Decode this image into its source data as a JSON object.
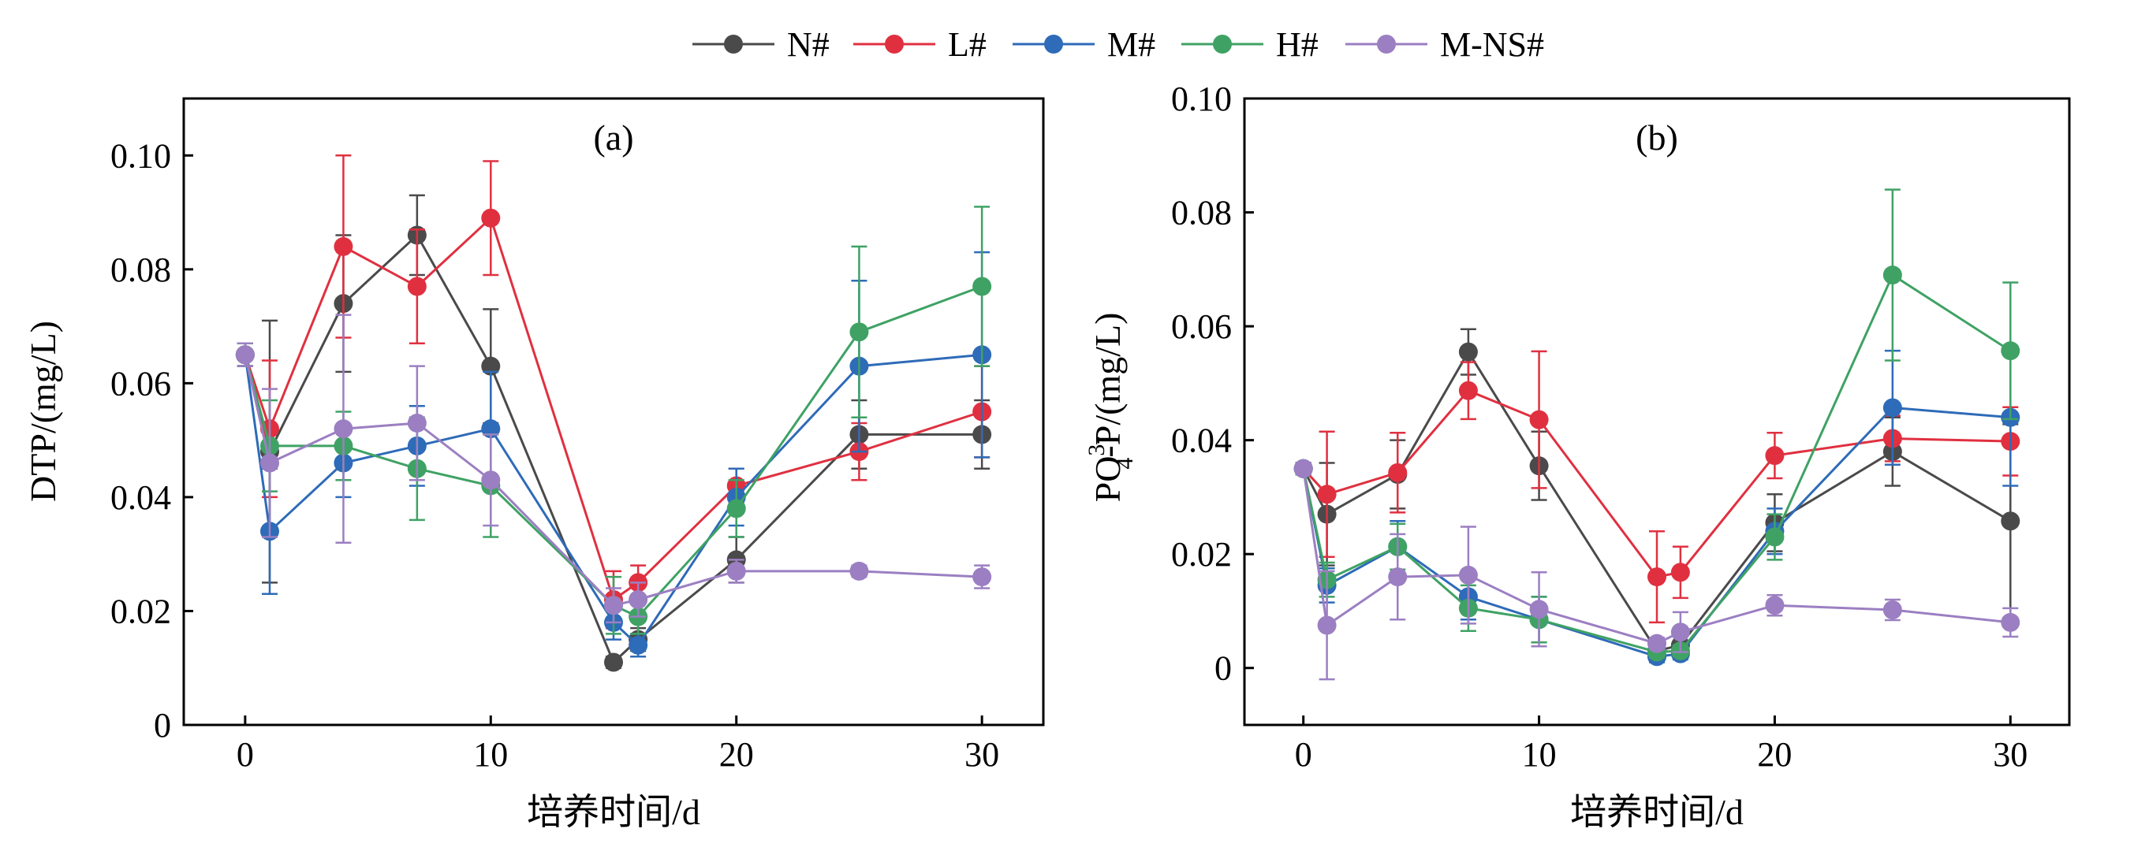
{
  "legend": {
    "placement": "top-center",
    "entries": [
      {
        "name": "N#",
        "color": "#4a4a4a"
      },
      {
        "name": "L#",
        "color": "#e03040"
      },
      {
        "name": "M#",
        "color": "#2e6bb8"
      },
      {
        "name": "H#",
        "color": "#3fa264"
      },
      {
        "name": "M-NS#",
        "color": "#9b7fc2"
      }
    ]
  },
  "chart_data": [
    {
      "type": "line",
      "panel_label": "(a)",
      "xlabel": "培养时间/d",
      "ylabel": "DTP/(mg/L)",
      "xlim": [
        -2.5,
        32.5
      ],
      "ylim": [
        0,
        0.11
      ],
      "xticks": [
        0,
        10,
        20,
        30
      ],
      "xtick_labels": [
        "0",
        "10",
        "20",
        "30"
      ],
      "yticks": [
        0,
        0.02,
        0.04,
        0.06,
        0.08,
        0.1
      ],
      "ytick_labels": [
        "0",
        "0.02",
        "0.04",
        "0.06",
        "0.08",
        "0.10"
      ],
      "x": [
        0,
        1,
        4,
        7,
        10,
        15,
        16,
        20,
        25,
        30
      ],
      "series": [
        {
          "name": "N#",
          "color": "#4a4a4a",
          "values": [
            0.065,
            0.048,
            0.074,
            0.086,
            0.063,
            0.011,
            0.015,
            0.029,
            0.051,
            0.051
          ],
          "errors": [
            0.002,
            0.023,
            0.012,
            0.007,
            0.01,
            0.001,
            0.002,
            0.004,
            0.006,
            0.006
          ]
        },
        {
          "name": "L#",
          "color": "#e03040",
          "values": [
            0.065,
            0.052,
            0.084,
            0.077,
            0.089,
            0.022,
            0.025,
            0.042,
            0.048,
            0.055
          ],
          "errors": [
            0.002,
            0.012,
            0.016,
            0.01,
            0.01,
            0.005,
            0.003,
            0.003,
            0.005,
            0.008
          ]
        },
        {
          "name": "M#",
          "color": "#2e6bb8",
          "values": [
            0.065,
            0.034,
            0.046,
            0.049,
            0.052,
            0.018,
            0.014,
            0.04,
            0.063,
            0.065
          ],
          "errors": [
            0.002,
            0.011,
            0.006,
            0.007,
            0.01,
            0.003,
            0.002,
            0.005,
            0.015,
            0.018
          ]
        },
        {
          "name": "H#",
          "color": "#3fa264",
          "values": [
            0.065,
            0.049,
            0.049,
            0.045,
            0.042,
            0.021,
            0.019,
            0.038,
            0.069,
            0.077
          ],
          "errors": [
            0.002,
            0.008,
            0.006,
            0.009,
            0.009,
            0.005,
            0.003,
            0.005,
            0.015,
            0.014
          ]
        },
        {
          "name": "M-NS#",
          "color": "#9b7fc2",
          "values": [
            0.065,
            0.046,
            0.052,
            0.053,
            0.043,
            0.021,
            0.022,
            0.027,
            0.027,
            0.026
          ],
          "errors": [
            0.002,
            0.013,
            0.02,
            0.01,
            0.008,
            0.003,
            0.003,
            0.002,
            0.001,
            0.002
          ]
        }
      ]
    },
    {
      "type": "line",
      "panel_label": "(b)",
      "xlabel": "培养时间/d",
      "ylabel_main": "PO",
      "ylabel_sub": "4",
      "ylabel_sup": "3-",
      "ylabel_rest": "-P/(mg/L)",
      "xlim": [
        -2.5,
        32.5
      ],
      "ylim": [
        -0.01,
        0.1
      ],
      "xticks": [
        0,
        10,
        20,
        30
      ],
      "xtick_labels": [
        "0",
        "10",
        "20",
        "30"
      ],
      "yticks": [
        0,
        0.02,
        0.04,
        0.06,
        0.08,
        0.1
      ],
      "ytick_labels": [
        "0",
        "0.02",
        "0.04",
        "0.06",
        "0.08",
        "0.10"
      ],
      "x": [
        0,
        1,
        4,
        7,
        10,
        15,
        16,
        20,
        25,
        30
      ],
      "series": [
        {
          "name": "N#",
          "color": "#4a4a4a",
          "values": [
            0.035,
            0.027,
            0.034,
            0.0555,
            0.0355,
            0.003,
            0.004,
            0.0255,
            0.038,
            0.0258
          ],
          "errors": [
            0.001,
            0.009,
            0.006,
            0.004,
            0.006,
            0.001,
            0.002,
            0.005,
            0.006,
            0.017
          ]
        },
        {
          "name": "L#",
          "color": "#e03040",
          "values": [
            0.035,
            0.0305,
            0.0343,
            0.0487,
            0.0436,
            0.016,
            0.0168,
            0.0373,
            0.0403,
            0.0398
          ],
          "errors": [
            0.001,
            0.011,
            0.007,
            0.005,
            0.012,
            0.008,
            0.0045,
            0.004,
            0.004,
            0.006
          ]
        },
        {
          "name": "M#",
          "color": "#2e6bb8",
          "values": [
            0.035,
            0.0145,
            0.0213,
            0.0125,
            0.0085,
            0.002,
            0.0025,
            0.024,
            0.0457,
            0.044
          ],
          "errors": [
            0.001,
            0.003,
            0.0045,
            0.004,
            0.004,
            0.001,
            0.001,
            0.004,
            0.01,
            0.012
          ]
        },
        {
          "name": "H#",
          "color": "#3fa264",
          "values": [
            0.035,
            0.0155,
            0.0213,
            0.0105,
            0.0085,
            0.0028,
            0.003,
            0.023,
            0.069,
            0.0557
          ],
          "errors": [
            0.001,
            0.003,
            0.004,
            0.004,
            0.004,
            0.001,
            0.001,
            0.004,
            0.015,
            0.012
          ]
        },
        {
          "name": "M-NS#",
          "color": "#9b7fc2",
          "values": [
            0.035,
            0.0075,
            0.016,
            0.0163,
            0.0103,
            0.0043,
            0.0063,
            0.011,
            0.0102,
            0.008
          ],
          "errors": [
            0.001,
            0.0095,
            0.0075,
            0.0085,
            0.0065,
            0.001,
            0.0035,
            0.0018,
            0.0018,
            0.0025
          ]
        }
      ]
    }
  ]
}
